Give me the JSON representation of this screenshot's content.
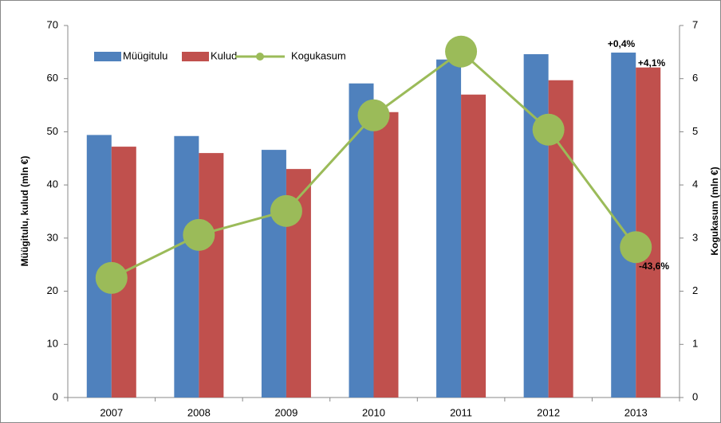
{
  "chart_data": {
    "type": "bar-line",
    "categories": [
      "2007",
      "2008",
      "2009",
      "2010",
      "2011",
      "2012",
      "2013"
    ],
    "series": [
      {
        "name": "Müügitulu",
        "color": "#4f81bd",
        "type": "bar",
        "values": [
          49.4,
          49.2,
          46.6,
          59.1,
          63.6,
          64.6,
          64.9
        ]
      },
      {
        "name": "Kulud",
        "color": "#c0504d",
        "type": "bar",
        "values": [
          47.2,
          46.0,
          43.0,
          53.7,
          57.0,
          59.7,
          62.1
        ]
      },
      {
        "name": "Kogukasum",
        "color": "#9bbb59",
        "type": "line",
        "axis": "y2",
        "values": [
          2.25,
          3.06,
          3.51,
          5.31,
          6.51,
          5.04,
          2.83
        ]
      }
    ],
    "ylabel": "Müügitulu, kulud (mln €)",
    "y2label": "Kogukasum (mln €)",
    "ylim": [
      0,
      70
    ],
    "yticks": [
      0,
      10,
      20,
      30,
      40,
      50,
      60,
      70
    ],
    "y2lim": [
      0,
      7
    ],
    "y2ticks": [
      0,
      1,
      2,
      3,
      4,
      5,
      6,
      7
    ],
    "annotations": [
      "+0,4%",
      "+4,1%",
      "-43,6%"
    ],
    "legend": "top-left"
  }
}
